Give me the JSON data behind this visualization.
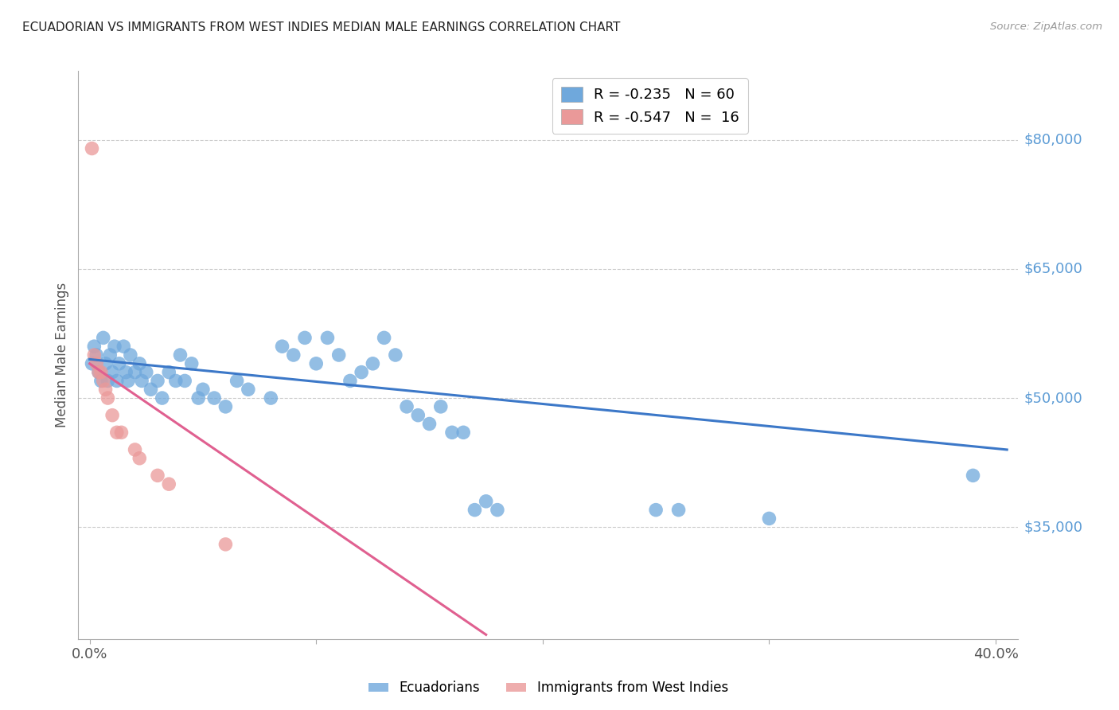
{
  "title": "ECUADORIAN VS IMMIGRANTS FROM WEST INDIES MEDIAN MALE EARNINGS CORRELATION CHART",
  "source": "Source: ZipAtlas.com",
  "ylabel": "Median Male Earnings",
  "right_ytick_labels": [
    "$80,000",
    "$65,000",
    "$50,000",
    "$35,000"
  ],
  "right_ytick_values": [
    80000,
    65000,
    50000,
    35000
  ],
  "legend_blue_r": "R = -0.235",
  "legend_blue_n": "N = 60",
  "legend_pink_r": "R = -0.547",
  "legend_pink_n": "N =  16",
  "legend_blue_label": "Ecuadorians",
  "legend_pink_label": "Immigrants from West Indies",
  "blue_color": "#6fa8dc",
  "pink_color": "#ea9999",
  "trendline_blue_color": "#3c78c8",
  "trendline_pink_color": "#e06090",
  "background_color": "#ffffff",
  "grid_color": "#cccccc",
  "blue_scatter": [
    [
      0.001,
      54000
    ],
    [
      0.002,
      56000
    ],
    [
      0.003,
      55000
    ],
    [
      0.004,
      53000
    ],
    [
      0.005,
      52000
    ],
    [
      0.006,
      57000
    ],
    [
      0.007,
      54000
    ],
    [
      0.008,
      52000
    ],
    [
      0.009,
      55000
    ],
    [
      0.01,
      53000
    ],
    [
      0.011,
      56000
    ],
    [
      0.012,
      52000
    ],
    [
      0.013,
      54000
    ],
    [
      0.015,
      56000
    ],
    [
      0.016,
      53000
    ],
    [
      0.017,
      52000
    ],
    [
      0.018,
      55000
    ],
    [
      0.02,
      53000
    ],
    [
      0.022,
      54000
    ],
    [
      0.023,
      52000
    ],
    [
      0.025,
      53000
    ],
    [
      0.027,
      51000
    ],
    [
      0.03,
      52000
    ],
    [
      0.032,
      50000
    ],
    [
      0.035,
      53000
    ],
    [
      0.038,
      52000
    ],
    [
      0.04,
      55000
    ],
    [
      0.042,
      52000
    ],
    [
      0.045,
      54000
    ],
    [
      0.048,
      50000
    ],
    [
      0.05,
      51000
    ],
    [
      0.055,
      50000
    ],
    [
      0.06,
      49000
    ],
    [
      0.065,
      52000
    ],
    [
      0.07,
      51000
    ],
    [
      0.08,
      50000
    ],
    [
      0.085,
      56000
    ],
    [
      0.09,
      55000
    ],
    [
      0.095,
      57000
    ],
    [
      0.1,
      54000
    ],
    [
      0.105,
      57000
    ],
    [
      0.11,
      55000
    ],
    [
      0.115,
      52000
    ],
    [
      0.12,
      53000
    ],
    [
      0.125,
      54000
    ],
    [
      0.13,
      57000
    ],
    [
      0.135,
      55000
    ],
    [
      0.14,
      49000
    ],
    [
      0.145,
      48000
    ],
    [
      0.15,
      47000
    ],
    [
      0.155,
      49000
    ],
    [
      0.16,
      46000
    ],
    [
      0.165,
      46000
    ],
    [
      0.17,
      37000
    ],
    [
      0.175,
      38000
    ],
    [
      0.18,
      37000
    ],
    [
      0.25,
      37000
    ],
    [
      0.26,
      37000
    ],
    [
      0.3,
      36000
    ],
    [
      0.39,
      41000
    ]
  ],
  "pink_scatter": [
    [
      0.001,
      79000
    ],
    [
      0.002,
      55000
    ],
    [
      0.003,
      54000
    ],
    [
      0.004,
      53000
    ],
    [
      0.005,
      53000
    ],
    [
      0.006,
      52000
    ],
    [
      0.007,
      51000
    ],
    [
      0.008,
      50000
    ],
    [
      0.01,
      48000
    ],
    [
      0.012,
      46000
    ],
    [
      0.014,
      46000
    ],
    [
      0.02,
      44000
    ],
    [
      0.022,
      43000
    ],
    [
      0.03,
      41000
    ],
    [
      0.035,
      40000
    ],
    [
      0.06,
      33000
    ]
  ],
  "xlim": [
    -0.005,
    0.41
  ],
  "ylim": [
    22000,
    88000
  ],
  "xticks": [
    0.0,
    0.4
  ],
  "xtick_labels": [
    "0.0%",
    "40.0%"
  ],
  "extra_xticks": [
    0.1,
    0.2,
    0.3
  ],
  "blue_trend_x": [
    0.0,
    0.405
  ],
  "blue_trend_y": [
    54500,
    44000
  ],
  "pink_trend_x": [
    0.0,
    0.175
  ],
  "pink_trend_y": [
    54000,
    22500
  ]
}
